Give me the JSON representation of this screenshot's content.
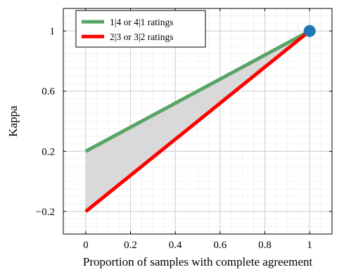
{
  "chart_data": {
    "type": "line",
    "xlabel": "Proportion of samples with complete agreement",
    "ylabel": "Kappa",
    "xlim": [
      -0.1,
      1.1
    ],
    "ylim": [
      -0.35,
      1.15
    ],
    "xticks": [
      0,
      0.2,
      0.4,
      0.6,
      0.8,
      1
    ],
    "xtick_labels": [
      "0",
      "0.2",
      "0.4",
      "0.6",
      "0.8",
      "1"
    ],
    "yticks": [
      -0.2,
      0.2,
      0.6,
      1
    ],
    "ytick_labels": [
      "−0.2",
      "0.2",
      "0.6",
      "1"
    ],
    "grid": true,
    "minor_grid": true,
    "legend_position": "top-left",
    "series": [
      {
        "name": "1|4 or 4|1 ratings",
        "color": "#5aa466",
        "x": [
          0,
          1
        ],
        "y": [
          0.2,
          1
        ]
      },
      {
        "name": "2|3 or 3|2 ratings",
        "color": "#ff0000",
        "x": [
          0,
          1
        ],
        "y": [
          -0.2,
          1
        ]
      }
    ],
    "shaded_region": {
      "between": [
        0,
        1
      ],
      "color": "#d9d9d9"
    },
    "marker": {
      "x": 1,
      "y": 1,
      "color": "#1f77b4"
    }
  }
}
